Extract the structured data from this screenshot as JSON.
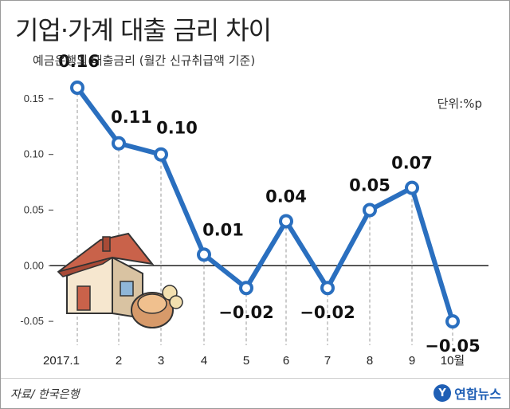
{
  "header": {
    "title": "기업·가계 대출 금리 차이",
    "subtitle": "예금은행의 대출금리 (월간 신규취급액 기준)",
    "unit": "단위:%p"
  },
  "footer": {
    "source": "자료/ 한국은행",
    "logo_text": "연합뉴스"
  },
  "colors": {
    "line": "#2a6fbf",
    "zero_line": "#222222",
    "guide": "#9a9a9a"
  },
  "chart_data": {
    "type": "line",
    "categories": [
      "2017.1",
      "2",
      "3",
      "4",
      "5",
      "6",
      "7",
      "8",
      "9",
      "10월"
    ],
    "values": [
      0.16,
      0.11,
      0.1,
      0.01,
      -0.02,
      0.04,
      -0.02,
      0.05,
      0.07,
      -0.05
    ],
    "data_labels": [
      "0.16",
      "0.11",
      "0.10",
      "0.01",
      "−0.02",
      "0.04",
      "−0.02",
      "0.05",
      "0.07",
      "−0.05"
    ],
    "y_ticks": [
      0.15,
      0.1,
      0.05,
      0.0,
      -0.05
    ],
    "y_tick_labels": [
      "0.15",
      "0.10",
      "0.05",
      "0.00",
      "-0.05"
    ],
    "ylim": [
      -0.07,
      0.17
    ],
    "grid": false
  }
}
